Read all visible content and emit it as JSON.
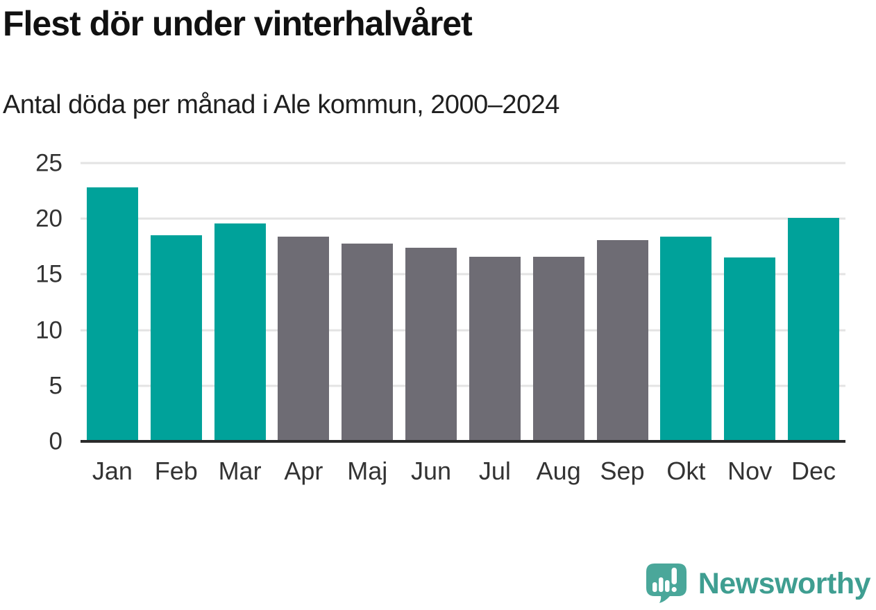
{
  "header": {
    "title": "Flest dör under vinterhalvåret",
    "subtitle": "Antal döda per månad i Ale kommun, 2000–2024"
  },
  "chart_data": {
    "type": "bar",
    "categories": [
      "Jan",
      "Feb",
      "Mar",
      "Apr",
      "Maj",
      "Jun",
      "Jul",
      "Aug",
      "Sep",
      "Okt",
      "Nov",
      "Dec"
    ],
    "values": [
      22.8,
      18.5,
      19.6,
      18.4,
      17.8,
      17.4,
      16.6,
      16.6,
      18.1,
      18.4,
      16.5,
      20.1
    ],
    "bar_colors": [
      "teal",
      "teal",
      "teal",
      "gray",
      "gray",
      "gray",
      "gray",
      "gray",
      "gray",
      "teal",
      "teal",
      "teal"
    ],
    "title": "Flest dör under vinterhalvåret",
    "subtitle": "Antal döda per månad i Ale kommun, 2000–2024",
    "xlabel": "",
    "ylabel": "",
    "ylim": [
      0,
      25
    ],
    "yticks": [
      0,
      5,
      10,
      15,
      20,
      25
    ],
    "grid": true,
    "legend": false
  },
  "colors": {
    "teal": "#00a29a",
    "gray": "#6e6c74",
    "grid": "#e3e3e3",
    "axis": "#2b2b2b",
    "tick_text": "#333333",
    "logo": "#3f9e91",
    "logo_icon": "#4aa79a"
  },
  "footer": {
    "brand": "Newsworthy"
  }
}
